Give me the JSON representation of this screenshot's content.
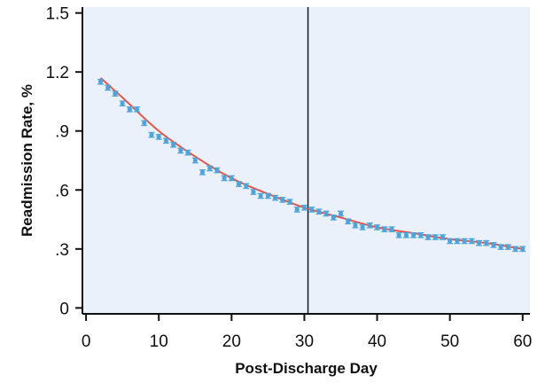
{
  "chart_data": {
    "type": "scatter",
    "title": "",
    "xlabel": "Post-Discharge Day",
    "ylabel": "Readmission Rate, %",
    "xlim": [
      -0.5,
      61
    ],
    "ylim": [
      -0.03,
      1.53
    ],
    "x_ticks": [
      0,
      10,
      20,
      30,
      40,
      50,
      60
    ],
    "x_tick_labels": [
      "0",
      "10",
      "20",
      "30",
      "40",
      "50",
      "60"
    ],
    "y_ticks": [
      0,
      0.3,
      0.6,
      0.9,
      1.2,
      1.5
    ],
    "y_tick_labels": [
      "0",
      ".3",
      ".6",
      ".9",
      "1.2",
      "1.5"
    ],
    "vertical_reference_line_x": 30.5,
    "colors": {
      "plot_background": "#eaf1fa",
      "points": "#4fa3d9",
      "fit_line": "#e0574a",
      "reference_line": "#1a1a1a"
    },
    "series": [
      {
        "kind": "points_with_error_bars",
        "x": [
          2,
          3,
          4,
          5,
          6,
          7,
          8,
          9,
          10,
          11,
          12,
          13,
          14,
          15,
          16,
          17,
          18,
          19,
          20,
          21,
          22,
          23,
          24,
          25,
          26,
          27,
          28,
          29,
          30,
          31,
          32,
          33,
          34,
          35,
          36,
          37,
          38,
          39,
          40,
          41,
          42,
          43,
          44,
          45,
          46,
          47,
          48,
          49,
          50,
          51,
          52,
          53,
          54,
          55,
          56,
          57,
          58,
          59,
          60
        ],
        "y": [
          1.15,
          1.12,
          1.09,
          1.04,
          1.01,
          1.01,
          0.94,
          0.88,
          0.87,
          0.85,
          0.83,
          0.8,
          0.79,
          0.75,
          0.69,
          0.71,
          0.7,
          0.66,
          0.66,
          0.63,
          0.62,
          0.59,
          0.57,
          0.57,
          0.56,
          0.55,
          0.54,
          0.5,
          0.51,
          0.5,
          0.49,
          0.48,
          0.46,
          0.48,
          0.44,
          0.42,
          0.41,
          0.42,
          0.41,
          0.4,
          0.4,
          0.37,
          0.37,
          0.37,
          0.37,
          0.36,
          0.36,
          0.36,
          0.34,
          0.34,
          0.34,
          0.34,
          0.33,
          0.33,
          0.32,
          0.31,
          0.31,
          0.3,
          0.3
        ],
        "error": 0.012
      },
      {
        "kind": "fitted_curve",
        "x": [
          2,
          5,
          10,
          15,
          20,
          25,
          30,
          35,
          40,
          45,
          50,
          55,
          60
        ],
        "y": [
          1.17,
          1.07,
          0.9,
          0.77,
          0.66,
          0.58,
          0.51,
          0.46,
          0.41,
          0.38,
          0.35,
          0.33,
          0.3
        ]
      }
    ]
  }
}
